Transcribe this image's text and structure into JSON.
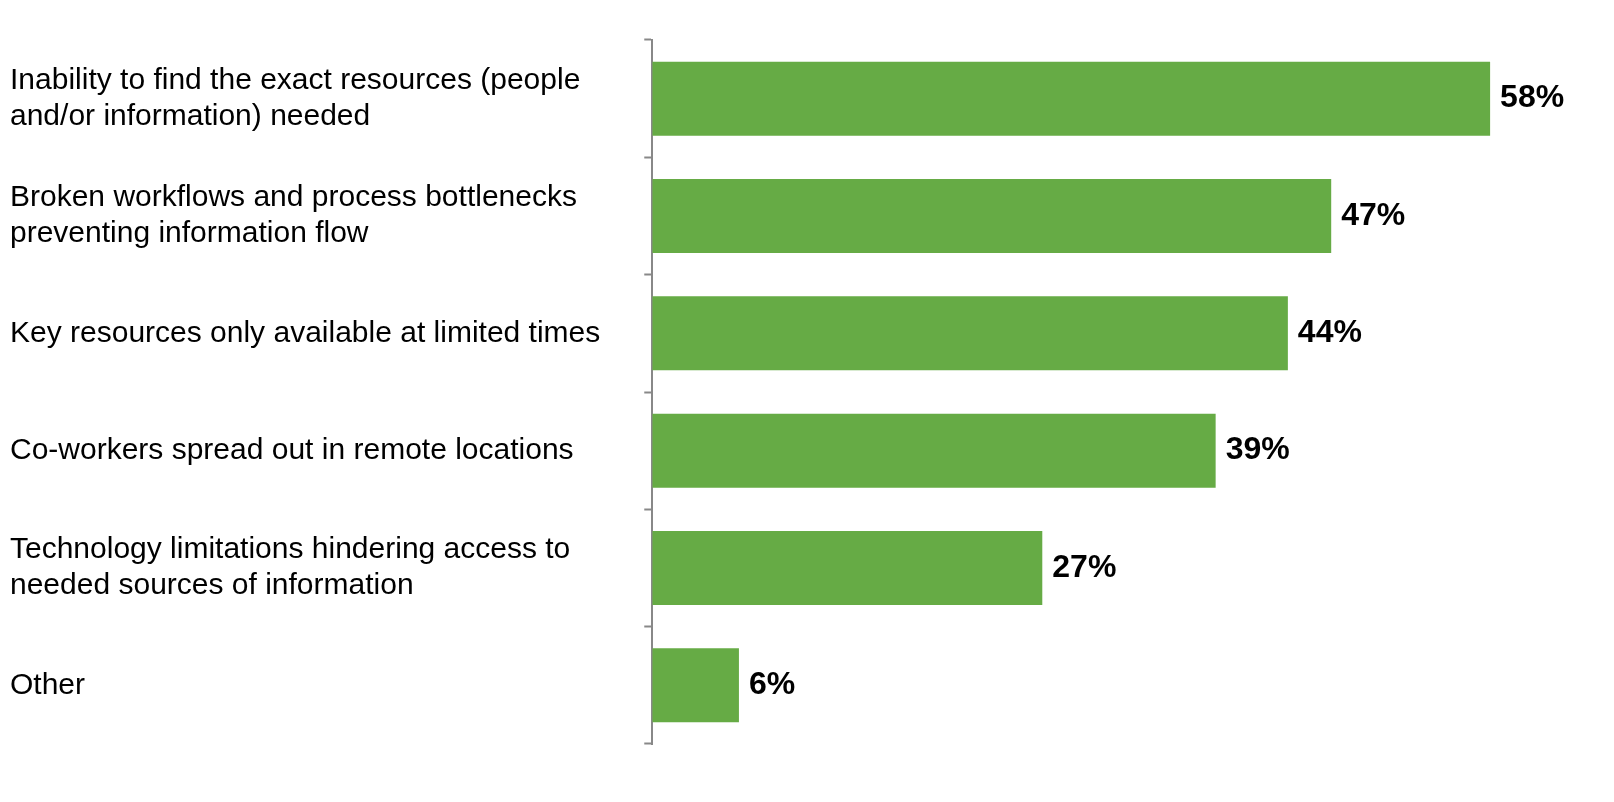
{
  "chart_data": {
    "type": "bar",
    "orientation": "horizontal",
    "tick_labels": "y",
    "categories": [
      "Inability to find the exact resources (people and/or information) needed",
      "Broken workflows and process bottlenecks preventing information flow",
      "Key resources only available at limited times",
      "Co-workers spread out in remote locations",
      "Technology limitations hindering access to needed sources of information",
      "Other"
    ],
    "values": [
      58,
      47,
      44,
      39,
      27,
      6
    ],
    "value_labels": [
      "58%",
      "47%",
      "44%",
      "39%",
      "27%",
      "6%"
    ],
    "color": "#66ab45"
  }
}
